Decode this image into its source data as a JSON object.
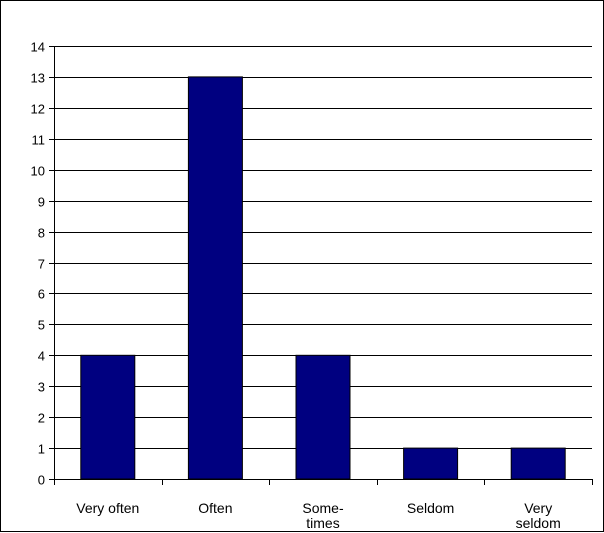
{
  "chart_data": {
    "type": "bar",
    "categories": [
      "Very often",
      "Often",
      "Some-\ntimes",
      "Seldom",
      "Very\nseldom"
    ],
    "values": [
      4,
      13,
      4,
      1,
      1
    ],
    "title": "",
    "xlabel": "",
    "ylabel": "",
    "ylim": [
      0,
      14
    ],
    "yticks": [
      0,
      1,
      2,
      3,
      4,
      5,
      6,
      7,
      8,
      9,
      10,
      11,
      12,
      13,
      14
    ],
    "grid": true,
    "legend": "none",
    "colors": {
      "bar": "#000080",
      "grid": "#000000",
      "background": "#ffffff"
    }
  }
}
